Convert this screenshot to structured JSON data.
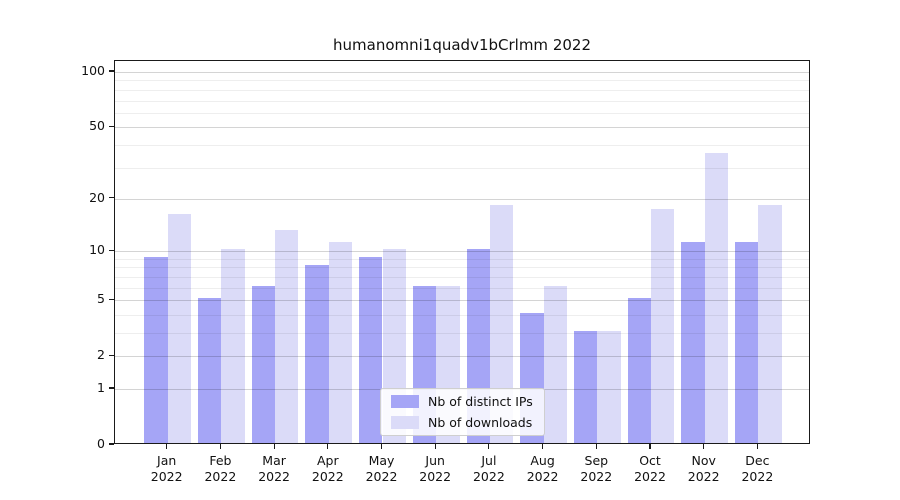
{
  "title": "humanomni1quadv1bCrlmm 2022",
  "colors": {
    "ips_bar": "#a5a5f6",
    "downloads_bar": "#dbdbf8",
    "axis": "#1a1a1a"
  },
  "legend": {
    "items": [
      {
        "label": "Nb of distinct IPs",
        "series": "ips"
      },
      {
        "label": "Nb of downloads",
        "series": "downloads"
      }
    ]
  },
  "chart_data": {
    "type": "bar",
    "title": "humanomni1quadv1bCrlmm 2022",
    "categories": [
      "Jan 2022",
      "Feb 2022",
      "Mar 2022",
      "Apr 2022",
      "May 2022",
      "Jun 2022",
      "Jul 2022",
      "Aug 2022",
      "Sep 2022",
      "Oct 2022",
      "Nov 2022",
      "Dec 2022"
    ],
    "series": [
      {
        "name": "Nb of distinct IPs",
        "color": "#a5a5f6",
        "values": [
          9,
          5,
          6,
          8,
          9,
          6,
          10,
          4,
          3,
          5,
          11,
          11
        ]
      },
      {
        "name": "Nb of downloads",
        "color": "#dbdbf8",
        "values": [
          16,
          10,
          13,
          11,
          10,
          6,
          18,
          6,
          3,
          17,
          35,
          18
        ]
      }
    ],
    "xlabel": "",
    "ylabel": "",
    "yscale": "log1p",
    "yticks": [
      0,
      1,
      2,
      5,
      10,
      20,
      50,
      100
    ],
    "minor_gridlines": [
      3,
      4,
      6,
      7,
      8,
      9,
      30,
      40,
      60,
      70,
      80,
      90
    ],
    "ylim": [
      0,
      115
    ],
    "grid": true,
    "legend_position": "lower center"
  }
}
